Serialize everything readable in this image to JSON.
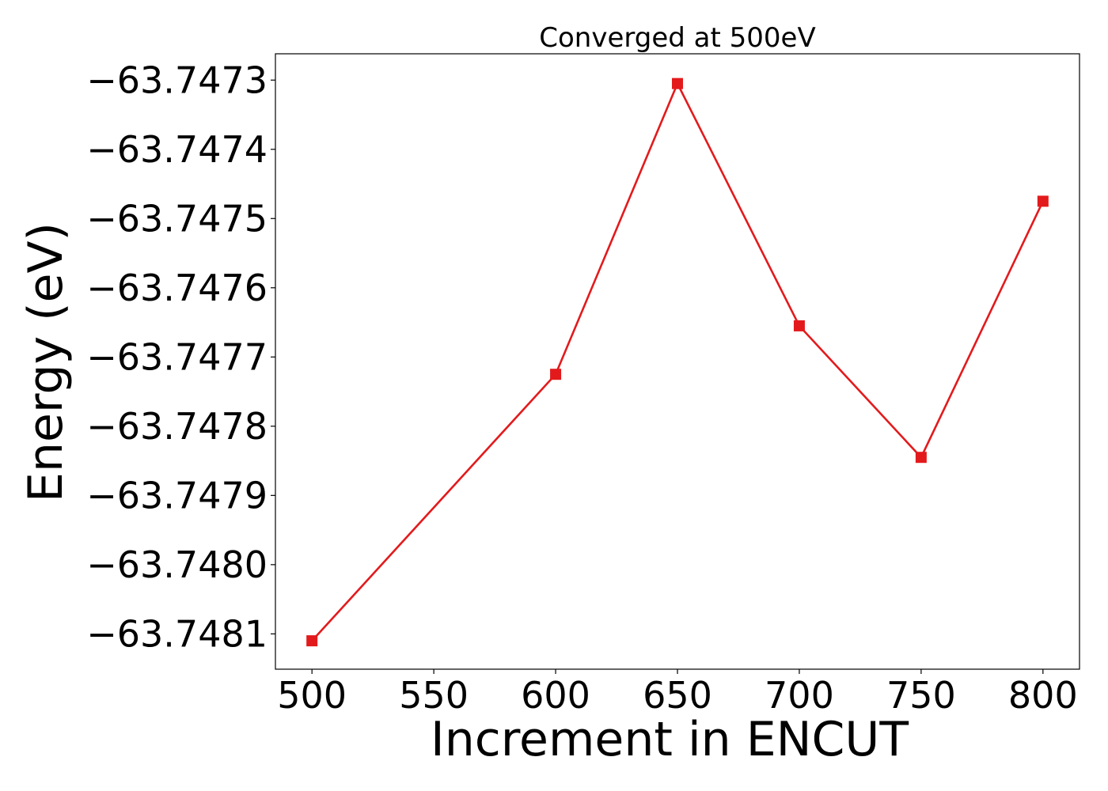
{
  "chart_data": {
    "type": "line",
    "title": "Converged at 500eV",
    "xlabel": "Increment in ENCUT",
    "ylabel": "Energy (eV)",
    "x": [
      500,
      600,
      650,
      700,
      750,
      800
    ],
    "series": [
      {
        "values": [
          -63.74811,
          -63.747725,
          -63.747305,
          -63.747655,
          -63.747845,
          -63.747475
        ],
        "color": "#e31a1c",
        "marker": "square"
      }
    ],
    "xlim": [
      485,
      815
    ],
    "ylim": [
      -63.748151,
      -63.747262
    ],
    "xticks": [
      500,
      550,
      600,
      650,
      700,
      750,
      800
    ],
    "xtick_labels": [
      "500",
      "550",
      "600",
      "650",
      "700",
      "750",
      "800"
    ],
    "yticks": [
      -63.7473,
      -63.7474,
      -63.7475,
      -63.7476,
      -63.7477,
      -63.7478,
      -63.7479,
      -63.748,
      -63.7481
    ],
    "ytick_labels": [
      "−63.7473",
      "−63.7474",
      "−63.7475",
      "−63.7476",
      "−63.7477",
      "−63.7478",
      "−63.7479",
      "−63.7480",
      "−63.7481"
    ],
    "grid": false,
    "legend": false
  }
}
